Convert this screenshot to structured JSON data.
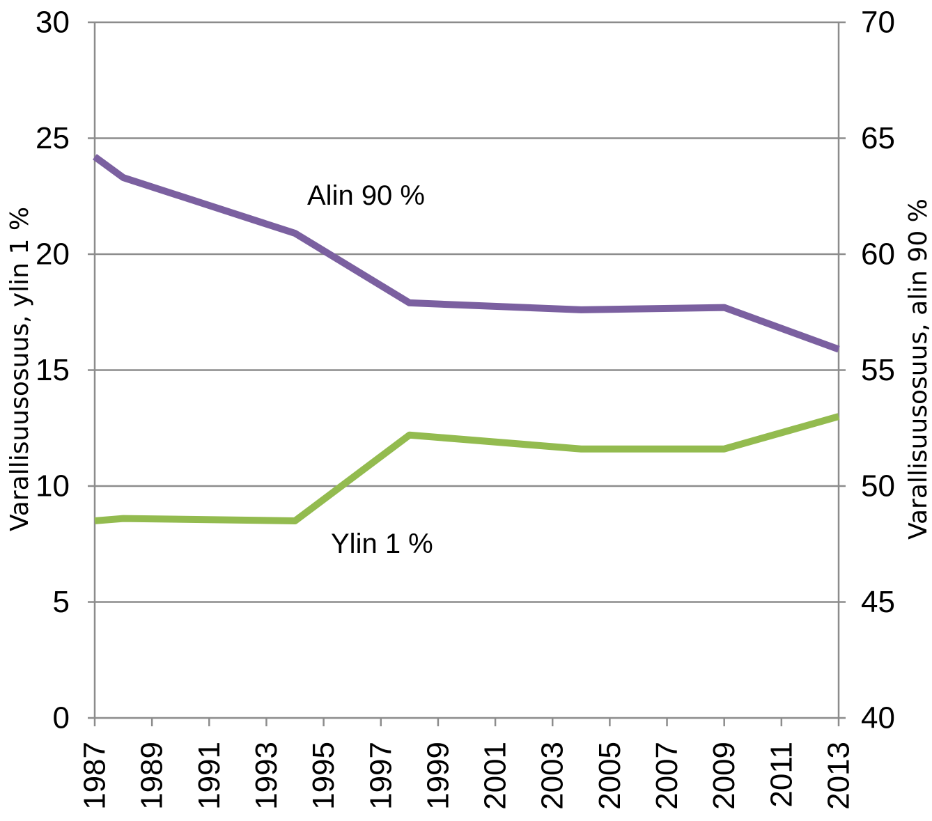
{
  "chart_data": {
    "type": "line",
    "x": [
      1987,
      1988,
      1994,
      1998,
      2004,
      2009,
      2013
    ],
    "x_ticks": [
      "1987",
      "1989",
      "1991",
      "1993",
      "1995",
      "1997",
      "1999",
      "2001",
      "2003",
      "2005",
      "2007",
      "2009",
      "2011",
      "2013"
    ],
    "xlim": [
      1987,
      2013
    ],
    "ylabel_left": "Varallisuusosuus,  ylin 1 %",
    "ylabel_right": "Varallisuusosuus,  alin 90 %",
    "ylim_left": [
      0,
      30
    ],
    "ylim_right": [
      40,
      70
    ],
    "y_ticks_left": [
      "0",
      "5",
      "10",
      "15",
      "20",
      "25",
      "30"
    ],
    "y_ticks_right": [
      "40",
      "45",
      "50",
      "55",
      "60",
      "65",
      "70"
    ],
    "grid": true,
    "series": [
      {
        "name": "Alin 90 %",
        "axis": "right",
        "color": "#7b60a0",
        "values": [
          64.2,
          63.3,
          60.9,
          57.9,
          57.6,
          57.7,
          55.9
        ]
      },
      {
        "name": "Ylin 1 %",
        "axis": "left",
        "color": "#93bb4f",
        "values": [
          8.5,
          8.6,
          8.5,
          12.2,
          11.6,
          11.6,
          13.0
        ]
      }
    ]
  }
}
